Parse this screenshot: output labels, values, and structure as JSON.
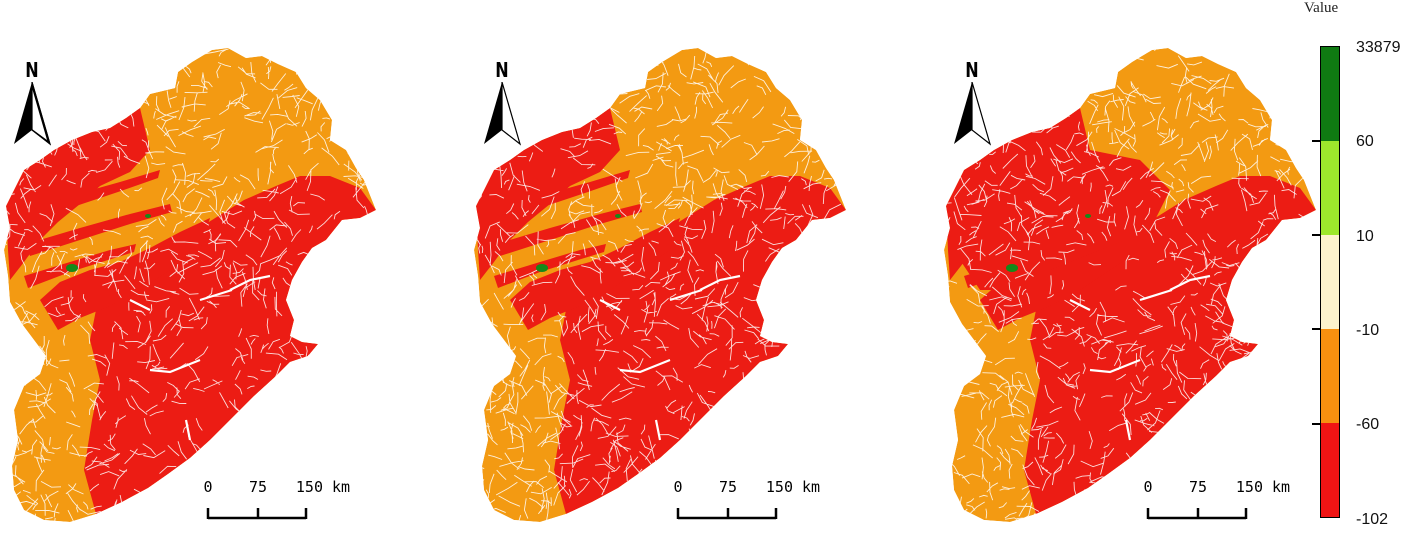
{
  "maps": [
    {
      "north_label": "N",
      "scale": {
        "ticks": [
          "0",
          "75",
          "150 km"
        ]
      }
    },
    {
      "north_label": "N",
      "scale": {
        "ticks": [
          "0",
          "75",
          "150 km"
        ]
      }
    },
    {
      "north_label": "N",
      "scale": {
        "ticks": [
          "0",
          "75",
          "150 km"
        ]
      }
    }
  ],
  "legend": {
    "title": "Value",
    "classes": [
      {
        "label": "33879",
        "color": "#0f7a12"
      },
      {
        "label": "60",
        "color": "#9ee82c"
      },
      {
        "label": "10",
        "color": "#fdf3cc"
      },
      {
        "label": "-10",
        "color": "#f7900f"
      },
      {
        "label": "-60",
        "color": "#f01414"
      },
      {
        "label": "-102"
      }
    ]
  },
  "colors": {
    "orange": "#f39a12",
    "red": "#ec1c14",
    "green": "#148a1a",
    "river": "#ffffff"
  }
}
